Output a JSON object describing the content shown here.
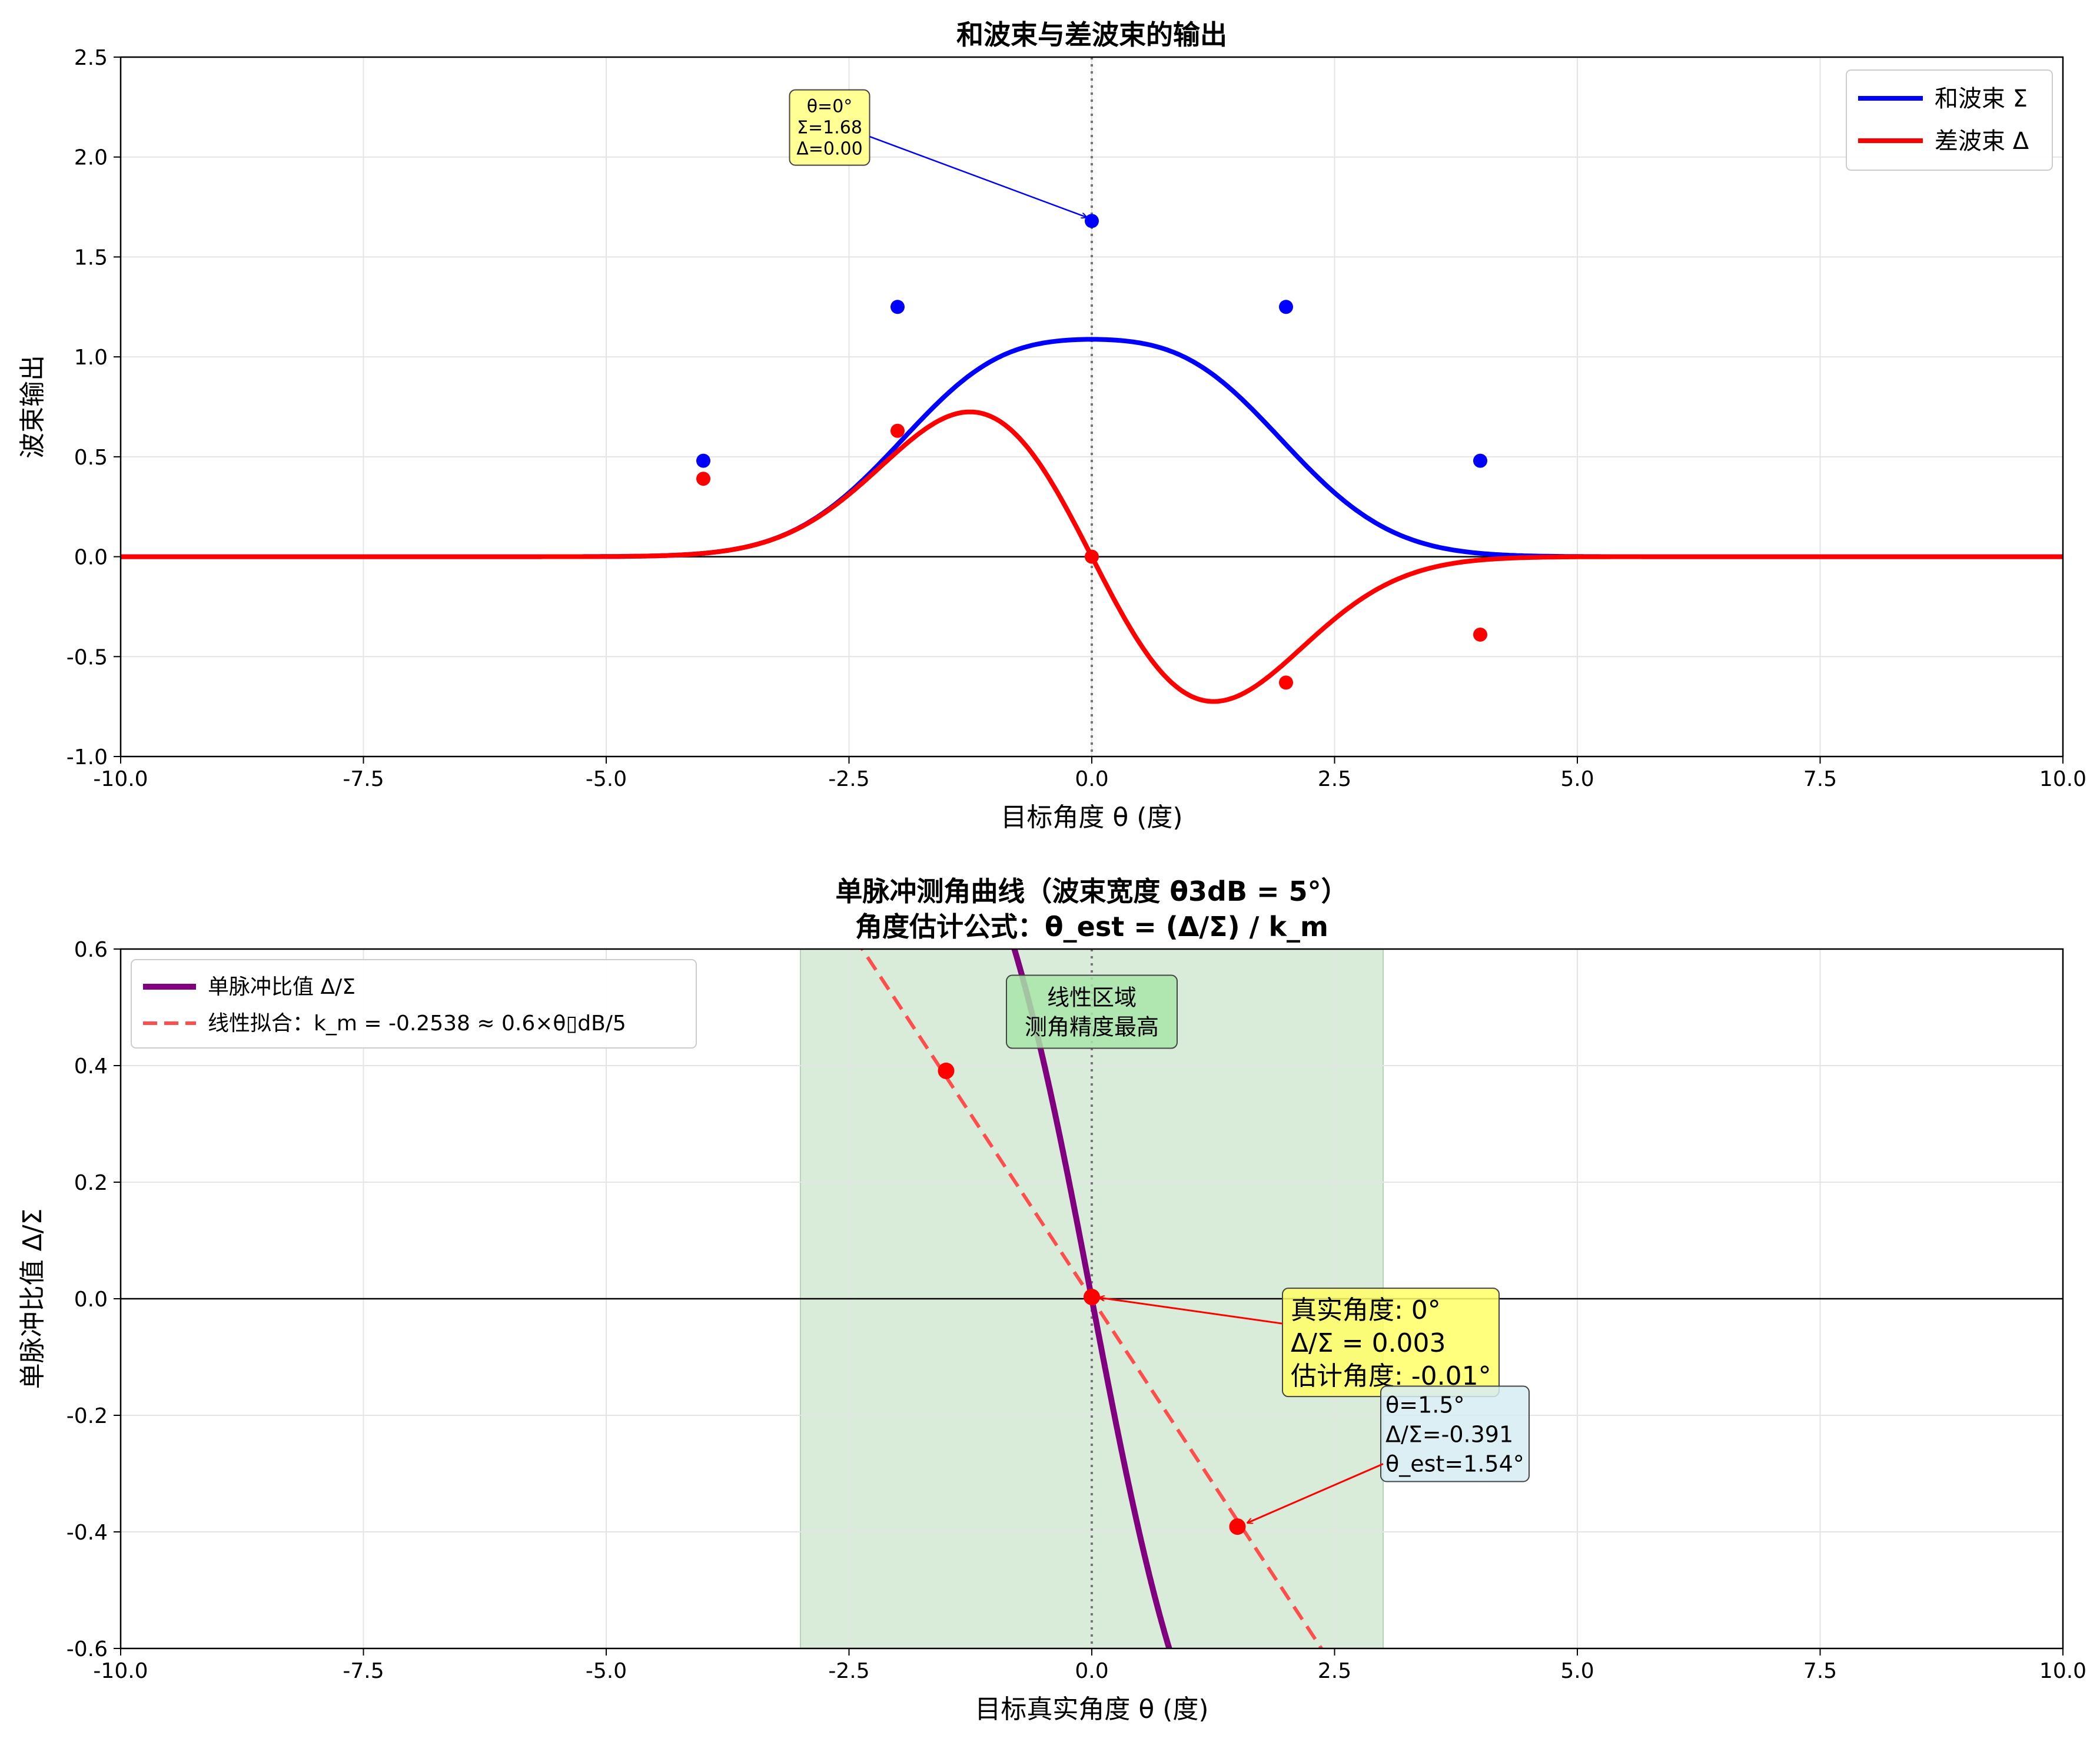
{
  "chart_data": [
    {
      "type": "line",
      "title": "和波束与差波束的输出",
      "xlabel": "目标角度 θ (度)",
      "ylabel": "波束输出",
      "xlim": [
        -10,
        10
      ],
      "ylim": [
        -1.0,
        2.5
      ],
      "xticks": [
        "-10.0",
        "-7.5",
        "-5.0",
        "-2.5",
        "0.0",
        "2.5",
        "5.0",
        "7.5",
        "10.0"
      ],
      "yticks": [
        "-1.0",
        "-0.5",
        "0.0",
        "0.5",
        "1.0",
        "1.5",
        "2.0",
        "2.5"
      ],
      "grid": true,
      "legend_position": "top-right",
      "series": [
        {
          "name": "和波束 Σ",
          "color": "#0000ff",
          "curve": "sum",
          "markers": {
            "x": [
              -4,
              -2,
              0,
              2,
              4
            ],
            "y": [
              0.48,
              1.25,
              1.68,
              1.25,
              0.48
            ]
          }
        },
        {
          "name": "差波束 Δ",
          "color": "#ff0000",
          "curve": "diff",
          "markers": {
            "x": [
              -4,
              -2,
              0,
              2,
              4
            ],
            "y": [
              0.39,
              0.63,
              0.0,
              -0.63,
              -0.39
            ]
          }
        }
      ],
      "annotations": [
        {
          "lines": [
            "θ=0°",
            "Σ=1.68",
            "Δ=0.00"
          ],
          "target": [
            0,
            1.68
          ],
          "text_at": [
            -2.7,
            2.13
          ],
          "color": "#0000ff",
          "box": "#ffff80"
        }
      ]
    },
    {
      "type": "line",
      "title_lines": [
        "单脉冲测角曲线（波束宽度 θ3dB = 5°）",
        "角度估计公式：θ_est = (Δ/Σ) / k_m"
      ],
      "xlabel": "目标真实角度 θ (度)",
      "ylabel": "单脉冲比值 Δ/Σ",
      "xlim": [
        -10,
        10
      ],
      "ylim": [
        -0.6,
        0.6
      ],
      "xticks": [
        "-10.0",
        "-7.5",
        "-5.0",
        "-2.5",
        "0.0",
        "2.5",
        "5.0",
        "7.5",
        "10.0"
      ],
      "yticks": [
        "-0.6",
        "-0.4",
        "-0.2",
        "0.0",
        "0.2",
        "0.4",
        "0.6"
      ],
      "grid": true,
      "legend_position": "top-left",
      "shaded_region": {
        "x": [
          -3,
          3
        ],
        "color": "#d9ecd9"
      },
      "series": [
        {
          "name": "单脉冲比值 Δ/Σ",
          "color": "#800080",
          "curve": "ratio"
        },
        {
          "name": "线性拟合：k_m = -0.2538 ≈ 0.6×θ▯dB/5",
          "color": "#ff4d4d",
          "style": "dashed",
          "slope": -0.2538
        }
      ],
      "points": {
        "x": [
          -1.5,
          0,
          1.5
        ],
        "y": [
          0.391,
          0.003,
          -0.391
        ]
      },
      "annotations": [
        {
          "lines": [
            "线性区域",
            "测角精度最高"
          ],
          "text_at": [
            0,
            0.48
          ],
          "box": "#a8e6a8"
        },
        {
          "lines": [
            "真实角度: 0°",
            "Δ/Σ = 0.003",
            "估计角度: -0.01°"
          ],
          "target": [
            0,
            0.003
          ],
          "text_at": [
            2.0,
            -0.08
          ],
          "box": "#ffff66",
          "color": "#ff0000"
        },
        {
          "lines": [
            "θ=1.5°",
            "Δ/Σ=-0.391",
            "θ_est=1.54°"
          ],
          "target": [
            1.5,
            -0.391
          ],
          "text_at": [
            3.0,
            -0.23
          ],
          "box": "#d6ecf3",
          "color": "#ff0000"
        }
      ]
    }
  ]
}
